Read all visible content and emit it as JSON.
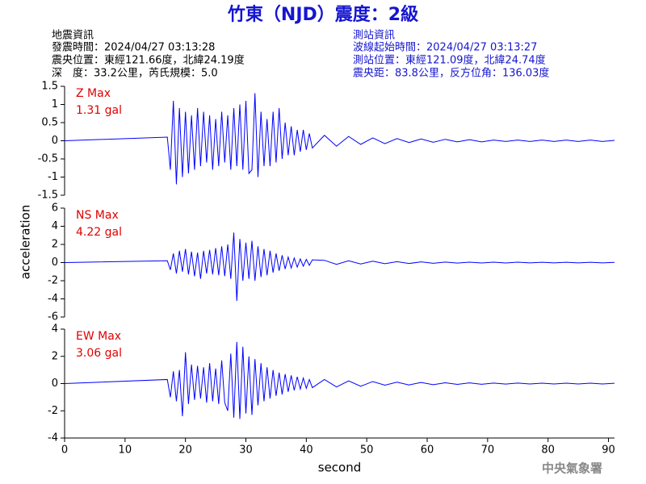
{
  "header": {
    "title": "竹東（NJD）震度：2級",
    "left": [
      "地震資訊",
      "發震時間：2024/04/27 03:13:28",
      "震央位置：東經121.66度，北緯24.19度",
      "深　度：33.2公里，芮氏規模：5.0"
    ],
    "right": [
      "測站資訊",
      "波線起始時間：2024/04/27 03:13:27",
      "測站位置：東經121.09度，北緯24.74度",
      "震央距：83.8公里，反方位角：136.03度"
    ]
  },
  "footer": "中央氣象署",
  "chart_data": [
    {
      "type": "line",
      "annotations": [
        "Z Max",
        "1.31 gal"
      ],
      "xlim": [
        0,
        91
      ],
      "ylim": [
        -1.5,
        1.5
      ],
      "yticks": [
        1.5,
        1,
        0.5,
        0,
        -0.5,
        -1,
        -1.5
      ],
      "x": [
        0,
        17,
        17.5,
        18,
        18.5,
        19,
        19.5,
        20,
        20.5,
        21,
        21.5,
        22,
        22.5,
        23,
        23.5,
        24,
        24.5,
        25,
        25.5,
        26,
        26.5,
        27,
        27.5,
        28,
        28.5,
        29,
        29.5,
        30,
        30.5,
        31,
        31.5,
        32,
        32.5,
        33,
        33.5,
        34,
        34.5,
        35,
        35.5,
        36,
        36.5,
        37,
        37.5,
        38,
        38.5,
        39,
        39.5,
        40,
        40.5,
        41,
        43,
        45,
        47,
        49,
        51,
        53,
        55,
        57,
        59,
        61,
        63,
        65,
        67,
        69,
        71,
        73,
        75,
        77,
        79,
        81,
        83,
        85,
        87,
        89,
        91
      ],
      "series": [
        {
          "color": "#0000ff",
          "values": [
            0,
            0.1,
            -0.8,
            1.1,
            -1.2,
            0.9,
            -1.0,
            0.8,
            -0.9,
            0.7,
            -0.8,
            0.9,
            -0.7,
            0.8,
            -0.6,
            0.7,
            -0.8,
            0.6,
            -0.7,
            0.8,
            -0.6,
            0.7,
            -0.8,
            0.9,
            -0.7,
            1.0,
            -0.8,
            1.1,
            -0.9,
            -0.8,
            1.31,
            -1.0,
            0.8,
            -0.7,
            0.6,
            -0.7,
            0.8,
            -0.6,
            0.9,
            -0.5,
            0.5,
            -0.4,
            0.4,
            -0.4,
            0.3,
            -0.3,
            0.3,
            -0.25,
            0.2,
            -0.2,
            0.15,
            -0.15,
            0.12,
            -0.1,
            0.08,
            -0.08,
            0.06,
            -0.05,
            0.05,
            -0.04,
            0.04,
            -0.03,
            0.03,
            -0.03,
            0.02,
            -0.02,
            0.02,
            -0.02,
            0.02,
            -0.02,
            0.02,
            -0.02,
            0.02,
            -0.02,
            0.01
          ]
        }
      ]
    },
    {
      "type": "line",
      "annotations": [
        "NS Max",
        "4.22 gal"
      ],
      "ylabel": "acceleration",
      "xlim": [
        0,
        91
      ],
      "ylim": [
        -6,
        6
      ],
      "yticks": [
        6,
        4,
        2,
        0,
        -2,
        -4,
        -6
      ],
      "x": [
        0,
        17,
        17.5,
        18,
        18.5,
        19,
        19.5,
        20,
        20.5,
        21,
        21.5,
        22,
        22.5,
        23,
        23.5,
        24,
        24.5,
        25,
        25.5,
        26,
        26.5,
        27,
        27.5,
        28,
        28.5,
        29,
        29.5,
        30,
        30.5,
        31,
        31.5,
        32,
        32.5,
        33,
        33.5,
        34,
        34.5,
        35,
        35.5,
        36,
        36.5,
        37,
        37.5,
        38,
        38.5,
        39,
        39.5,
        40,
        40.5,
        41,
        43,
        45,
        47,
        49,
        51,
        53,
        55,
        57,
        59,
        61,
        63,
        65,
        67,
        69,
        71,
        73,
        75,
        77,
        79,
        81,
        83,
        85,
        87,
        89,
        91
      ],
      "series": [
        {
          "color": "#0000ff",
          "values": [
            0,
            0.2,
            -0.8,
            1.0,
            -1.2,
            1.3,
            -1.0,
            1.5,
            -1.3,
            1.2,
            -1.5,
            1.1,
            -1.8,
            1.3,
            -1.2,
            1.4,
            -1.3,
            1.6,
            -1.4,
            1.8,
            -1.5,
            2.0,
            -1.8,
            3.3,
            -4.22,
            2.6,
            -2.0,
            2.2,
            -1.8,
            2.4,
            -2.0,
            1.8,
            -1.6,
            1.5,
            -1.4,
            1.3,
            -1.1,
            1.0,
            -0.9,
            0.8,
            -0.7,
            0.6,
            -0.6,
            0.5,
            -0.5,
            0.4,
            -0.4,
            0.35,
            -0.3,
            0.3,
            0.25,
            -0.2,
            0.2,
            -0.15,
            0.15,
            -0.12,
            0.1,
            -0.1,
            0.08,
            -0.08,
            0.06,
            -0.06,
            0.05,
            -0.05,
            0.04,
            -0.04,
            0.04,
            -0.03,
            0.03,
            -0.03,
            0.03,
            -0.03,
            0.03,
            -0.03,
            0.02
          ]
        }
      ]
    },
    {
      "type": "line",
      "annotations": [
        "EW Max",
        "3.06 gal"
      ],
      "xlabel": "second",
      "xlim": [
        0,
        91
      ],
      "ylim": [
        -4,
        4
      ],
      "yticks": [
        4,
        2,
        0,
        -2,
        -4
      ],
      "xticks": [
        0,
        10,
        20,
        30,
        40,
        50,
        60,
        70,
        80,
        90
      ],
      "x": [
        0,
        17,
        17.5,
        18,
        18.5,
        19,
        19.5,
        20,
        20.5,
        21,
        21.5,
        22,
        22.5,
        23,
        23.5,
        24,
        24.5,
        25,
        25.5,
        26,
        26.5,
        27,
        27.5,
        28,
        28.5,
        29,
        29.5,
        30,
        30.5,
        31,
        31.5,
        32,
        32.5,
        33,
        33.5,
        34,
        34.5,
        35,
        35.5,
        36,
        36.5,
        37,
        37.5,
        38,
        38.5,
        39,
        39.5,
        40,
        40.5,
        41,
        43,
        45,
        47,
        49,
        51,
        53,
        55,
        57,
        59,
        61,
        63,
        65,
        67,
        69,
        71,
        73,
        75,
        77,
        79,
        81,
        83,
        85,
        87,
        89,
        91
      ],
      "series": [
        {
          "color": "#0000ff",
          "values": [
            0,
            0.3,
            -1.0,
            0.9,
            -1.3,
            1.0,
            -2.4,
            2.3,
            -1.5,
            1.4,
            -1.2,
            1.3,
            -1.1,
            1.2,
            -1.4,
            1.5,
            -1.3,
            1.1,
            -1.5,
            1.7,
            -1.4,
            -2.0,
            2.2,
            -2.5,
            3.06,
            -2.6,
            2.7,
            -2.2,
            2.0,
            -2.3,
            1.8,
            -1.6,
            1.5,
            -1.3,
            1.2,
            -1.1,
            1.0,
            -0.9,
            0.8,
            -0.8,
            0.7,
            -0.6,
            0.6,
            -0.5,
            0.5,
            -0.4,
            0.4,
            -0.35,
            0.3,
            -0.3,
            0.3,
            -0.25,
            0.2,
            -0.2,
            0.15,
            -0.12,
            0.1,
            -0.1,
            0.08,
            -0.08,
            0.06,
            -0.06,
            0.05,
            -0.05,
            0.04,
            -0.04,
            0.04,
            -0.03,
            0.03,
            -0.03,
            0.03,
            -0.03,
            0.03,
            -0.03,
            0.02
          ]
        }
      ]
    }
  ]
}
